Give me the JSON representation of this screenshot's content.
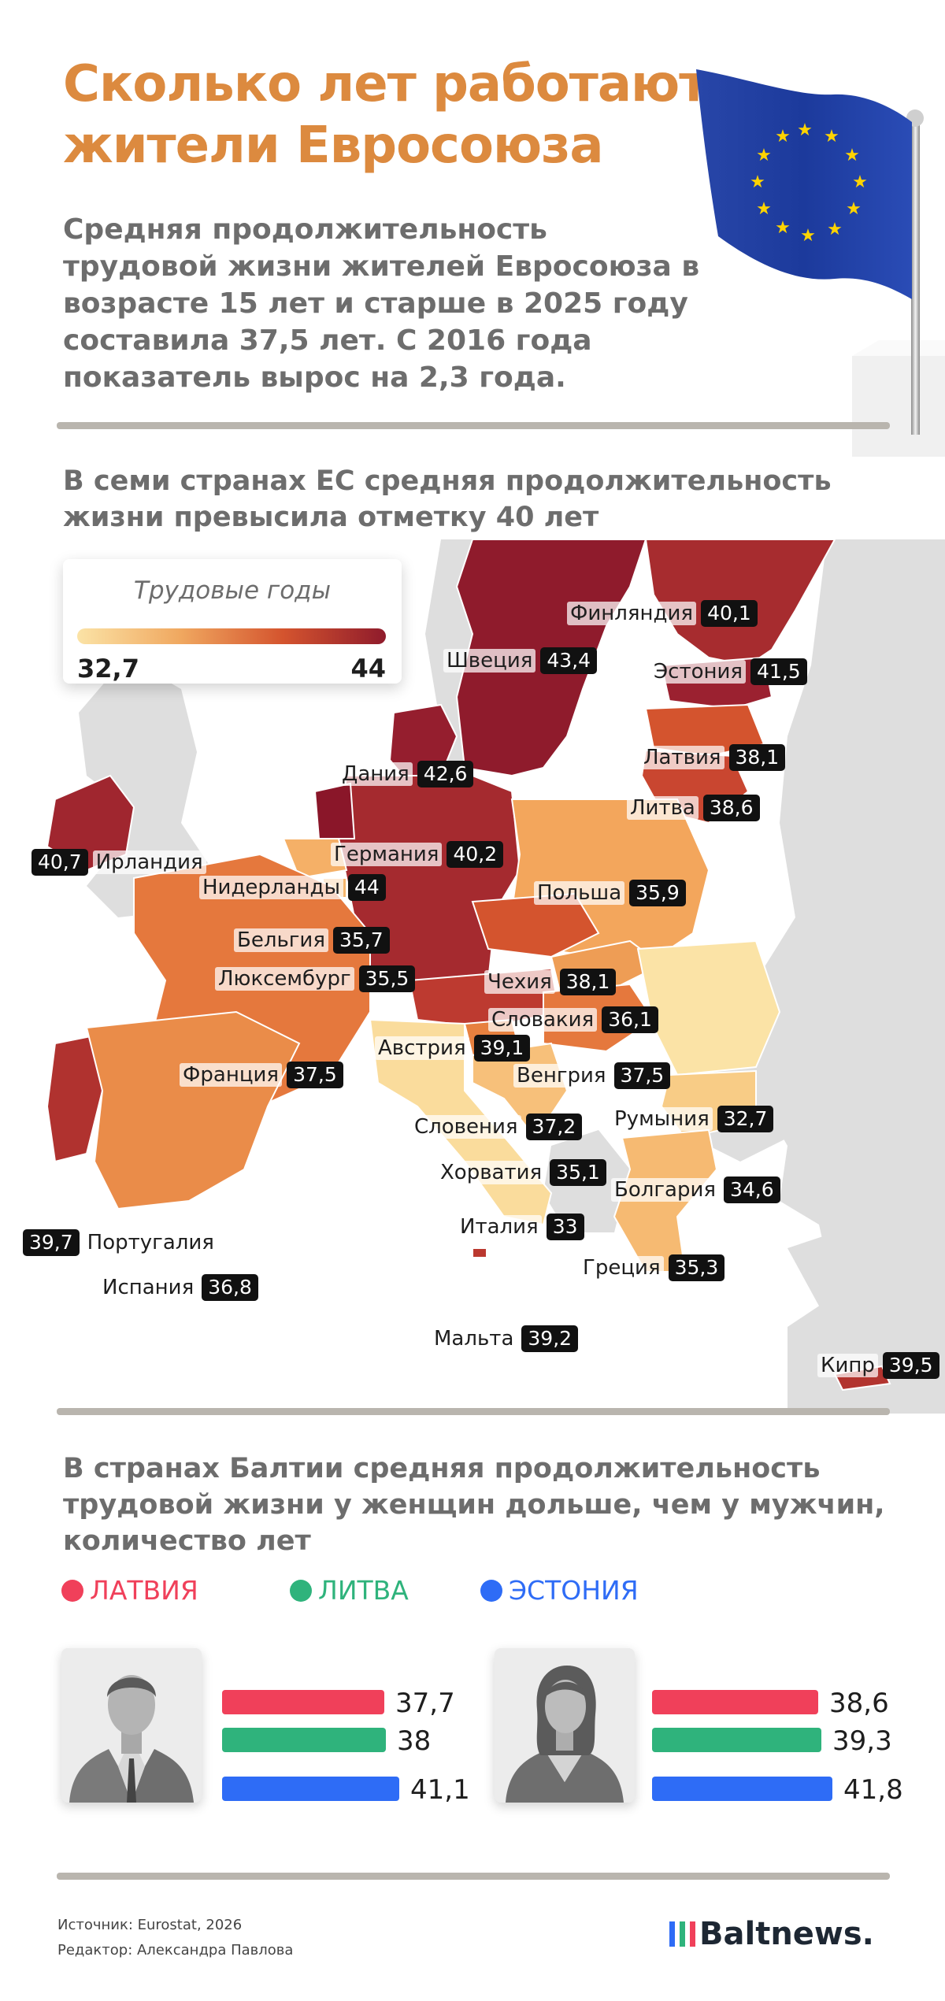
{
  "header": {
    "title": "Сколько лет работают жители Евросоюза",
    "lead": "Средняя продолжительность трудовой жизни жителей Евросоюза в возрасте 15 лет и старше в 2025 году составила 37,5 лет. С 2016 года показатель вырос на 2,3 года."
  },
  "map": {
    "heading": "В семи странах ЕС средняя продолжительность жизни превысила отметку 40 лет",
    "legend": {
      "title": "Трудовые годы",
      "min": "32,7",
      "max": "44"
    },
    "countries": [
      {
        "name": "Финляндия",
        "value": "40,1",
        "color": "#a72c2f"
      },
      {
        "name": "Швеция",
        "value": "43,4",
        "color": "#8f1b2c"
      },
      {
        "name": "Эстония",
        "value": "41,5",
        "color": "#9b2130"
      },
      {
        "name": "Дания",
        "value": "42,6",
        "color": "#951e2e"
      },
      {
        "name": "Латвия",
        "value": "38,1",
        "color": "#d4542e"
      },
      {
        "name": "Литва",
        "value": "38,6",
        "color": "#c94630"
      },
      {
        "name": "Германия",
        "value": "40,2",
        "color": "#a52a2f"
      },
      {
        "name": "Ирландия",
        "value": "40,7",
        "color": "#a0262f"
      },
      {
        "name": "Нидерланды",
        "value": "44",
        "color": "#8a1629"
      },
      {
        "name": "Польша",
        "value": "35,9",
        "color": "#f3a65c"
      },
      {
        "name": "Бельгия",
        "value": "35,7",
        "color": "#f5b067"
      },
      {
        "name": "Люксембург",
        "value": "35,5",
        "color": "#f6b66c"
      },
      {
        "name": "Чехия",
        "value": "38,1",
        "color": "#d4542e"
      },
      {
        "name": "Словакия",
        "value": "36,1",
        "color": "#ee9d55"
      },
      {
        "name": "Австрия",
        "value": "39,1",
        "color": "#bd3a30"
      },
      {
        "name": "Франция",
        "value": "37,5",
        "color": "#e5783d"
      },
      {
        "name": "Венгрия",
        "value": "37,5",
        "color": "#e5783d"
      },
      {
        "name": "Словения",
        "value": "37,2",
        "color": "#e7803f"
      },
      {
        "name": "Румыния",
        "value": "32,7",
        "color": "#fbe3a6"
      },
      {
        "name": "Хорватия",
        "value": "35,1",
        "color": "#f7c07a"
      },
      {
        "name": "Болгария",
        "value": "34,6",
        "color": "#f8cc86"
      },
      {
        "name": "Португалия",
        "value": "39,7",
        "color": "#b0322f"
      },
      {
        "name": "Италия",
        "value": "33",
        "color": "#fadc9c"
      },
      {
        "name": "Испания",
        "value": "36,8",
        "color": "#ea8c49"
      },
      {
        "name": "Греция",
        "value": "35,3",
        "color": "#f6ba72"
      },
      {
        "name": "Мальта",
        "value": "39,2",
        "color": "#bb382f"
      },
      {
        "name": "Кипр",
        "value": "39,5",
        "color": "#b2342f"
      }
    ]
  },
  "baltics": {
    "heading": "В странах Балтии средняя продолжительность трудовой жизни у женщин дольше, чем у мужчин, количество лет",
    "legend": [
      {
        "name": "ЛАТВИЯ",
        "color": "#f0405a"
      },
      {
        "name": "ЛИТВА",
        "color": "#2fb37c"
      },
      {
        "name": "ЭСТОНИЯ",
        "color": "#2e6cf6"
      }
    ],
    "men": [
      {
        "country": "Латвия",
        "value": 37.7,
        "label": "37,7"
      },
      {
        "country": "Литва",
        "value": 38,
        "label": "38"
      },
      {
        "country": "Эстония",
        "value": 41.1,
        "label": "41,1"
      }
    ],
    "women": [
      {
        "country": "Латвия",
        "value": 38.6,
        "label": "38,6"
      },
      {
        "country": "Литва",
        "value": 39.3,
        "label": "39,3"
      },
      {
        "country": "Эстония",
        "value": 41.8,
        "label": "41,8"
      }
    ]
  },
  "footer": {
    "source": "Источник: Eurostat, 2026",
    "editor": "Редактор: Александра Павлова",
    "brand": "Baltnews."
  },
  "colors": {
    "accent": "#dc8a3f",
    "text": "#6d6d6d",
    "land_non_eu": "#dedede"
  }
}
